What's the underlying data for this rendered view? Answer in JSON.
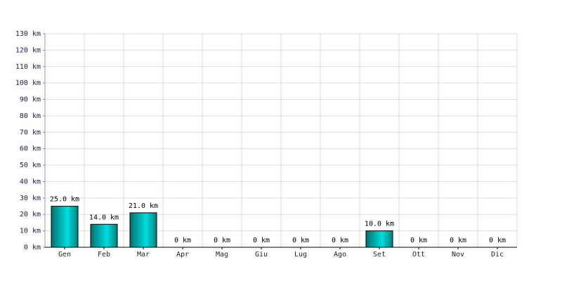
{
  "chart_data": {
    "type": "bar",
    "categories": [
      "Gen",
      "Feb",
      "Mar",
      "Apr",
      "Mag",
      "Giu",
      "Lug",
      "Ago",
      "Set",
      "Ott",
      "Nov",
      "Dic"
    ],
    "values": [
      25,
      14,
      21,
      0,
      0,
      0,
      0,
      0,
      10,
      0,
      0,
      0
    ],
    "value_labels": [
      "25.0 km",
      "14.0 km",
      "21.0 km",
      "0 km",
      "0 km",
      "0 km",
      "0 km",
      "0 km",
      "10.0 km",
      "0 km",
      "0 km",
      "0 km"
    ],
    "color": "#00dede",
    "ylim": [
      0,
      130
    ],
    "yticks": [
      {
        "value": 0,
        "label": "0 km"
      },
      {
        "value": 10,
        "label": "10 km"
      },
      {
        "value": 20,
        "label": "20 km"
      },
      {
        "value": 30,
        "label": "30 km"
      },
      {
        "value": 40,
        "label": "40 km"
      },
      {
        "value": 50,
        "label": "50 km"
      },
      {
        "value": 60,
        "label": "60 km"
      },
      {
        "value": 70,
        "label": "70 km"
      },
      {
        "value": 80,
        "label": "80 km"
      },
      {
        "value": 90,
        "label": "90 km"
      },
      {
        "value": 100,
        "label": "100 km"
      },
      {
        "value": 110,
        "label": "110 km"
      },
      {
        "value": 120,
        "label": "120 km"
      },
      {
        "value": 130,
        "label": "130 km"
      }
    ],
    "grid": true
  }
}
